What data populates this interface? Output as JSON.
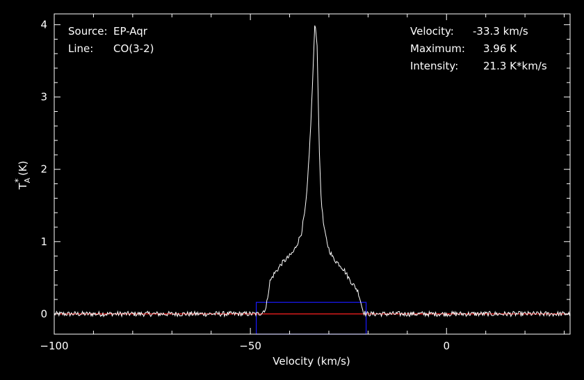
{
  "chart_data": {
    "type": "line",
    "title": "",
    "xlabel": "Velocity (km/s)",
    "ylabel_main": "T",
    "ylabel_sup": "*",
    "ylabel_sub": "A",
    "ylabel_unit": "(K)",
    "xlim": [
      -100,
      31.5
    ],
    "ylim": [
      -0.28,
      4.15
    ],
    "xticks": [
      -100,
      -50,
      0
    ],
    "yticks": [
      0,
      1,
      2,
      3,
      4
    ],
    "grid": false,
    "info_left": [
      {
        "label": "Source:",
        "value": "EP-Aqr"
      },
      {
        "label": "Line:",
        "value": "CO(3-2)"
      }
    ],
    "info_right": [
      {
        "label": "Velocity:",
        "value": "-33.3 km/s"
      },
      {
        "label": "Maximum:",
        "value": "3.96 K"
      },
      {
        "label": "Intensity:",
        "value": "21.3 K*km/s"
      }
    ],
    "window": {
      "x0": -48.5,
      "x1": -20.5,
      "y0": -0.28,
      "y1": 0.16,
      "color": "#1a1aff"
    },
    "baseline": {
      "y": 0,
      "color": "#ff2020"
    },
    "spectrum_color": "#ffffff",
    "series": [
      {
        "values_x": [
          -100,
          -90,
          -80,
          -70,
          -60,
          -50,
          -48,
          -47,
          -46,
          -45.5,
          -45,
          -44,
          -43,
          -42,
          -41,
          -40,
          -39,
          -38,
          -37,
          -36,
          -35.5,
          -35,
          -34.5,
          -34,
          -33.6,
          -33.3,
          -33,
          -32.7,
          -32.4,
          -32,
          -31.5,
          -31,
          -30.5,
          -30,
          -29,
          -28,
          -27,
          -26,
          -25,
          -24,
          -23,
          -22.5,
          -22,
          -21.5,
          -21,
          -20.5,
          -20,
          -15,
          -10,
          0,
          10,
          20,
          31.5
        ],
        "values_y": [
          0,
          0,
          0,
          0,
          0,
          0,
          0,
          0.02,
          0.08,
          0.28,
          0.45,
          0.55,
          0.62,
          0.7,
          0.75,
          0.8,
          0.86,
          0.98,
          1.12,
          1.45,
          1.75,
          2.2,
          2.75,
          3.4,
          3.96,
          3.96,
          3.7,
          3.0,
          2.2,
          1.65,
          1.3,
          1.12,
          1.0,
          0.9,
          0.78,
          0.72,
          0.67,
          0.6,
          0.5,
          0.42,
          0.35,
          0.3,
          0.2,
          0.08,
          0.02,
          0,
          0,
          0,
          0,
          0,
          0,
          0,
          0
        ]
      }
    ]
  }
}
